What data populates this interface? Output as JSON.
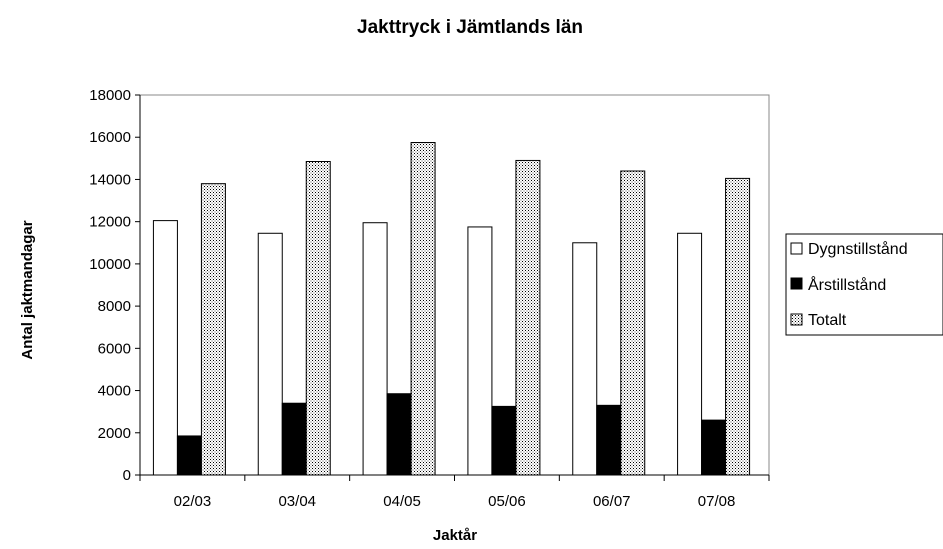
{
  "chart_data": {
    "type": "bar",
    "title": "Jakttryck i Jämtlands län",
    "xlabel": "Jaktår",
    "ylabel": "Antal jaktmandagar",
    "categories": [
      "02/03",
      "03/04",
      "04/05",
      "05/06",
      "06/07",
      "07/08"
    ],
    "ylim": [
      0,
      18000
    ],
    "yticks": [
      0,
      2000,
      4000,
      6000,
      8000,
      10000,
      12000,
      14000,
      16000,
      18000
    ],
    "grid": false,
    "legend_position": "right",
    "series": [
      {
        "name": "Dygnstillstånd",
        "values": [
          12050,
          11450,
          11950,
          11750,
          11000,
          11450
        ],
        "fill": "#ffffff",
        "pattern": "solid"
      },
      {
        "name": "Årstillstånd",
        "values": [
          1850,
          3400,
          3850,
          3250,
          3300,
          2600
        ],
        "fill": "#000000",
        "pattern": "solid"
      },
      {
        "name": "Totalt",
        "values": [
          13800,
          14850,
          15750,
          14900,
          14400,
          14050
        ],
        "fill": "#c0c0c0",
        "pattern": "dotted"
      }
    ]
  }
}
